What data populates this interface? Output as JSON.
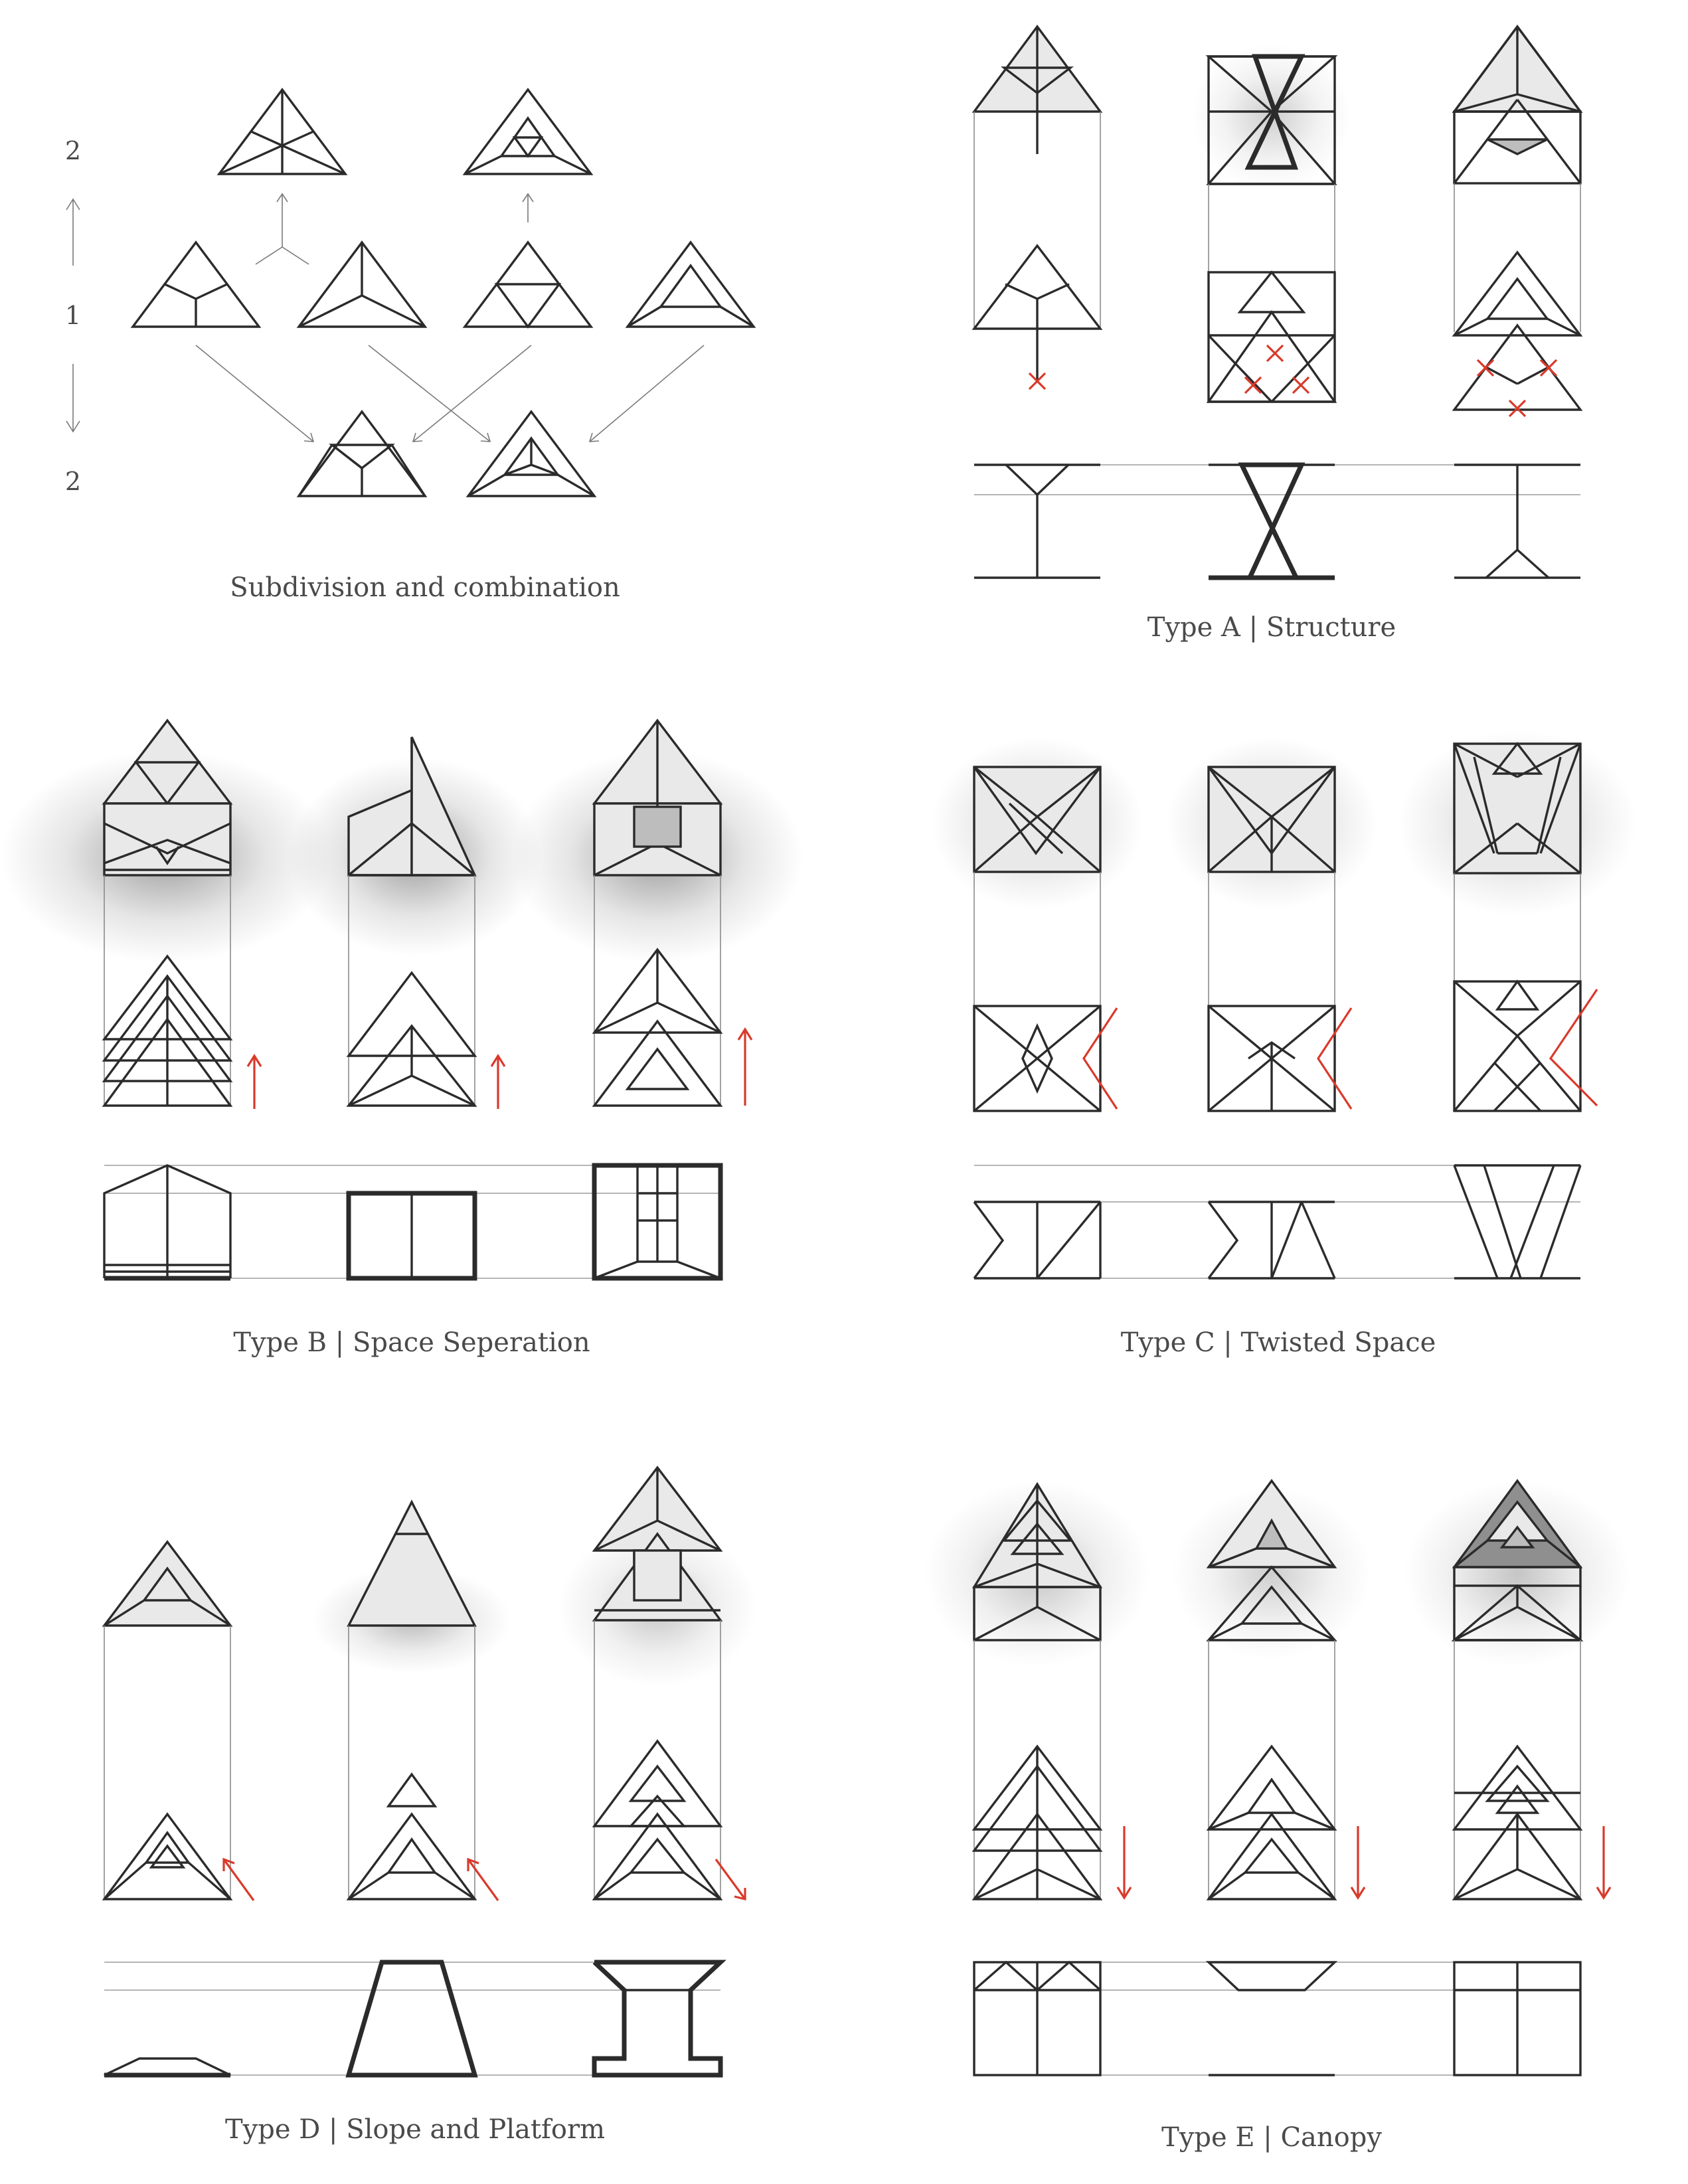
{
  "level_labels": [
    "2",
    "1",
    "2"
  ],
  "captions": {
    "subdivision": "Subdivision and combination",
    "type_a": "Type A | Structure",
    "type_b": "Type B | Space Seperation",
    "type_c": "Type C | Twisted Space",
    "type_d": "Type D | Slope and Platform",
    "type_e": "Type E | Canopy"
  },
  "colors": {
    "line": "#2b2b2b",
    "guide": "#b5b5b5",
    "accent_red": "#d93a2b",
    "text": "#4a4a4a"
  }
}
